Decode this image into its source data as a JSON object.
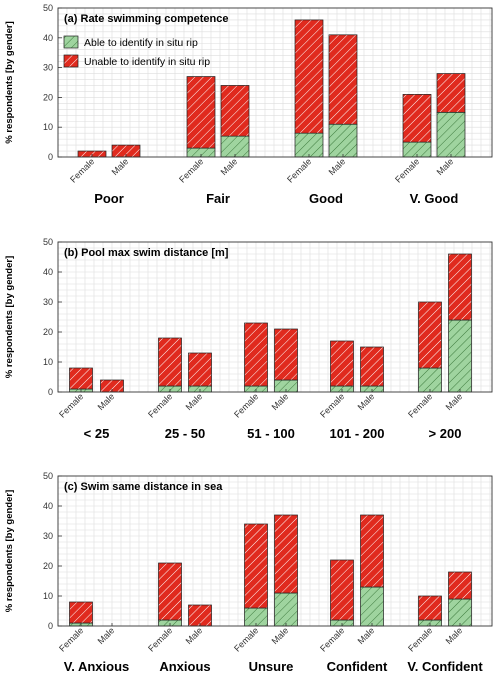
{
  "colors": {
    "able": "#9fd49f",
    "unable": "#e02a1e",
    "able_hatch": "#3d7a3d",
    "unable_hatch": "#ffffff",
    "grid": "#dddddd",
    "axis": "#333333"
  },
  "legend": {
    "able_label": "Able to identify in situ rip",
    "unable_label": "Unable to identify in situ rip"
  },
  "chart_data": [
    {
      "type": "bar",
      "stacked": true,
      "title": "(a) Rate swimming competence",
      "ylabel": "% respondents [by gender]",
      "ylim": [
        0,
        50
      ],
      "yticks": [
        0,
        10,
        20,
        30,
        40,
        50
      ],
      "grid": true,
      "legend_position": "top-left",
      "bar_labels": [
        "Female",
        "Male"
      ],
      "categories": [
        "Poor",
        "Fair",
        "Good",
        "V. Good"
      ],
      "series": [
        {
          "name": "Able to identify in situ rip",
          "values": [
            [
              0,
              0
            ],
            [
              3,
              7
            ],
            [
              8,
              11
            ],
            [
              5,
              15
            ]
          ]
        },
        {
          "name": "Unable to identify in situ rip",
          "values": [
            [
              2,
              4
            ],
            [
              24,
              17
            ],
            [
              38,
              30
            ],
            [
              16,
              13
            ]
          ]
        }
      ]
    },
    {
      "type": "bar",
      "stacked": true,
      "title": "(b) Pool max swim distance [m]",
      "ylabel": "% respondents [by gender]",
      "ylim": [
        0,
        50
      ],
      "yticks": [
        0,
        10,
        20,
        30,
        40,
        50
      ],
      "grid": true,
      "bar_labels": [
        "Female",
        "Male"
      ],
      "categories": [
        "< 25",
        "25 - 50",
        "51 - 100",
        "101 - 200",
        "> 200"
      ],
      "series": [
        {
          "name": "Able to identify in situ rip",
          "values": [
            [
              1,
              0
            ],
            [
              2,
              2
            ],
            [
              2,
              4
            ],
            [
              2,
              2
            ],
            [
              8,
              24
            ]
          ]
        },
        {
          "name": "Unable to identify in situ rip",
          "values": [
            [
              7,
              4
            ],
            [
              16,
              11
            ],
            [
              21,
              17
            ],
            [
              15,
              13
            ],
            [
              22,
              22
            ]
          ]
        }
      ]
    },
    {
      "type": "bar",
      "stacked": true,
      "title": "(c) Swim same distance in sea",
      "ylabel": "% respondents [by gender]",
      "ylim": [
        0,
        50
      ],
      "yticks": [
        0,
        10,
        20,
        30,
        40,
        50
      ],
      "grid": true,
      "bar_labels": [
        "Female",
        "Male"
      ],
      "categories": [
        "V. Anxious",
        "Anxious",
        "Unsure",
        "Confident",
        "V. Confident"
      ],
      "series": [
        {
          "name": "Able to identify in situ rip",
          "values": [
            [
              1,
              0
            ],
            [
              2,
              0
            ],
            [
              6,
              11
            ],
            [
              2,
              13
            ],
            [
              2,
              9
            ]
          ]
        },
        {
          "name": "Unable to identify in situ rip",
          "values": [
            [
              7,
              0
            ],
            [
              19,
              7
            ],
            [
              28,
              26
            ],
            [
              20,
              24
            ],
            [
              8,
              9
            ]
          ]
        }
      ]
    }
  ]
}
